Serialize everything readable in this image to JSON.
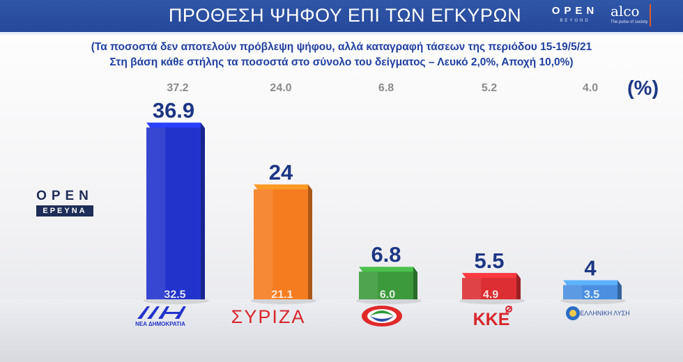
{
  "header": {
    "title": "ΠΡΟΘΕΣΗ ΨΗΦΟΥ ΕΠΙ ΤΩΝ ΕΓΚΥΡΩΝ",
    "logo_open": "OPEN",
    "logo_open_sub": "BEYOND",
    "logo_alco": "alco",
    "logo_alco_sub": "The pulse of society"
  },
  "subtitle": {
    "line1": "(Τα ποσοστά δεν αποτελούν πρόβλεψη ψήφου, αλλά καταγραφή τάσεων της περιόδου 15-19/5/21",
    "line2": "Στη βάση κάθε στήλης τα ποσοστά στο σύνολο του δείγματος – Λευκό 2,0%, Αποχή 10,0%)"
  },
  "unit_label": "(%)",
  "watermark": {
    "top": "OPEN",
    "bottom": "ΕΡΕΥΝΑ"
  },
  "colors": {
    "header": "#2a4c9f",
    "title_text": "#1f3fa0",
    "value_text": "#1d3684",
    "previous_text": "#8a8a8a"
  },
  "chart_data": {
    "type": "bar",
    "categories": [
      "ΝΕΑ ΔΗΜΟΚΡΑΤΙΑ",
      "ΣΥΡΙΖΑ",
      "ΚΙΝΑΛ",
      "ΚΚΕ",
      "ΕΛΛΗΝΙΚΗ ΛΥΣΗ"
    ],
    "values": [
      36.9,
      24,
      6.8,
      5.5,
      4
    ],
    "value_labels": [
      "36.9",
      "24",
      "6.8",
      "5.5",
      "4"
    ],
    "base_values": [
      32.5,
      21.1,
      6.0,
      4.9,
      3.5
    ],
    "base_labels": [
      "32.5",
      "21.1",
      "6.0",
      "4.9",
      "3.5"
    ],
    "previous_values": [
      37.2,
      24.0,
      6.8,
      5.2,
      4.0
    ],
    "previous_labels": [
      "37.2",
      "24.0",
      "6.8",
      "5.2",
      "4.0"
    ],
    "bar_colors": [
      "#2233cc",
      "#f57c1f",
      "#3c9a3c",
      "#dd2e33",
      "#4a8fe0"
    ],
    "logo_texts": [
      "ΝΕΑ ΔΗΜΟΚΡΑΤΙΑ",
      "ΣΥΡΙΖΑ",
      "",
      "ΚΚΕ",
      "ΕΛΛΗΝΙΚΗ ΛΥΣΗ"
    ],
    "ylim": [
      0,
      40
    ],
    "grid": false,
    "legend": "none"
  }
}
